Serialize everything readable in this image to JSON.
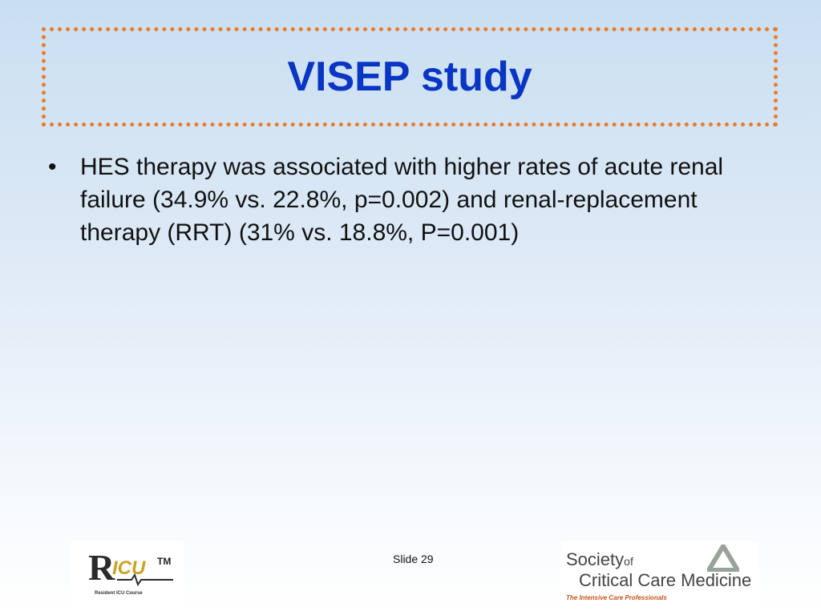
{
  "slide": {
    "title": "VISEP study",
    "bullets": [
      {
        "marker": "•",
        "text": "HES therapy was associated with higher rates of acute renal failure (34.9% vs. 22.8%, p=0.002) and renal-replacement therapy (RRT) (31% vs. 18.8%, P=0.001)"
      }
    ],
    "slide_number": "Slide 29"
  },
  "logos": {
    "left": {
      "letter": "R",
      "icu": "ICU",
      "tm": "TM",
      "caption": "Resident ICU Course"
    },
    "right": {
      "society": "Society",
      "of": "of",
      "name": "Critical Care Medicine",
      "tagline": "The Intensive Care Professionals"
    }
  },
  "colors": {
    "title": "#0a36c4",
    "border": "#ec7a28",
    "text": "#111111"
  }
}
